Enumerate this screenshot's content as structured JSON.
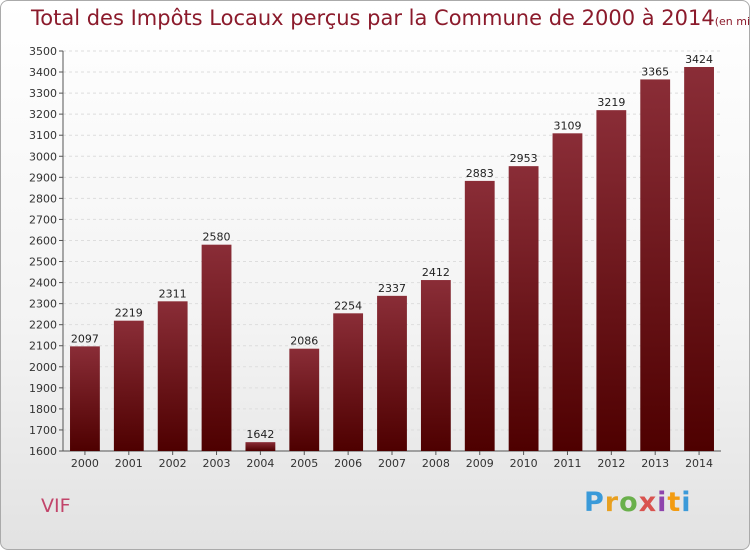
{
  "title": "Total des Impôts Locaux perçus par la Commune de 2000 à 2014",
  "title_unit": "(en milliers d'€)",
  "commune": "VIF",
  "logo_text": "Proxiti",
  "colors": {
    "bar_top": "#8a2d37",
    "bar_bottom": "#4e0000",
    "title": "#8b1a2b",
    "commune": "#c2446a"
  },
  "chart_data": {
    "type": "bar",
    "categories": [
      "2000",
      "2001",
      "2002",
      "2003",
      "2004",
      "2005",
      "2006",
      "2007",
      "2008",
      "2009",
      "2010",
      "2011",
      "2012",
      "2013",
      "2014"
    ],
    "values": [
      2097,
      2219,
      2311,
      2580,
      1642,
      2086,
      2254,
      2337,
      2412,
      2883,
      2953,
      3109,
      3219,
      3365,
      3424
    ],
    "ylim": [
      1600,
      3500
    ],
    "ytick_step": 100,
    "grid": true,
    "data_labels": true
  }
}
